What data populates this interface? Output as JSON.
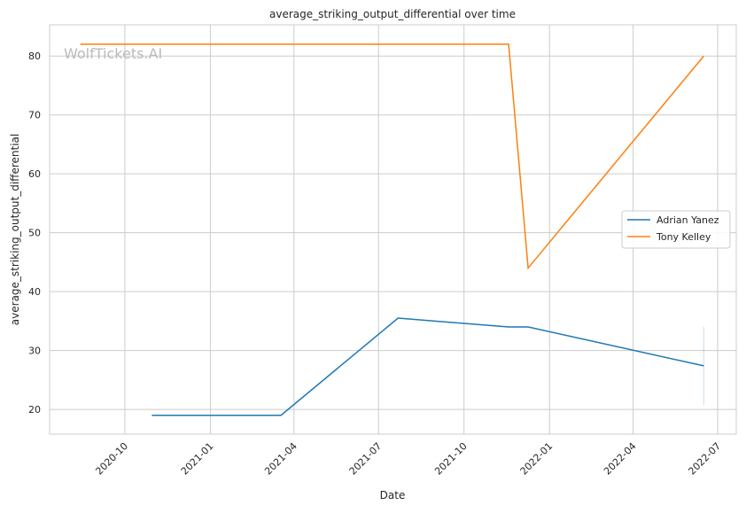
{
  "chart_data": {
    "type": "line",
    "title": "average_striking_output_differential over time",
    "xlabel": "Date",
    "ylabel": "average_striking_output_differential",
    "watermark": "WolfTickets.AI",
    "xlim": [
      "2020-07-12",
      "2022-07-21"
    ],
    "ylim": [
      15.8,
      85.3
    ],
    "yticks": [
      20,
      30,
      40,
      50,
      60,
      70,
      80
    ],
    "xticks": [
      "2020-10",
      "2021-01",
      "2021-04",
      "2021-07",
      "2021-10",
      "2022-01",
      "2022-04",
      "2022-07"
    ],
    "grid": true,
    "legend_position": "center-right",
    "series": [
      {
        "name": "Adrian Yanez",
        "color": "#1f77b4",
        "x": [
          "2020-10-30",
          "2021-03-18",
          "2021-07-22",
          "2021-11-18",
          "2021-12-09",
          "2022-06-16"
        ],
        "y": [
          19,
          19,
          35.5,
          34,
          34,
          27.4
        ],
        "error_band": {
          "x": "2022-06-16",
          "low": 20.8,
          "high": 34
        }
      },
      {
        "name": "Tony Kelley",
        "color": "#ff7f0e",
        "x": [
          "2020-08-14",
          "2021-11-18",
          "2021-12-09",
          "2022-06-16"
        ],
        "y": [
          82,
          82,
          44,
          80
        ]
      }
    ]
  }
}
